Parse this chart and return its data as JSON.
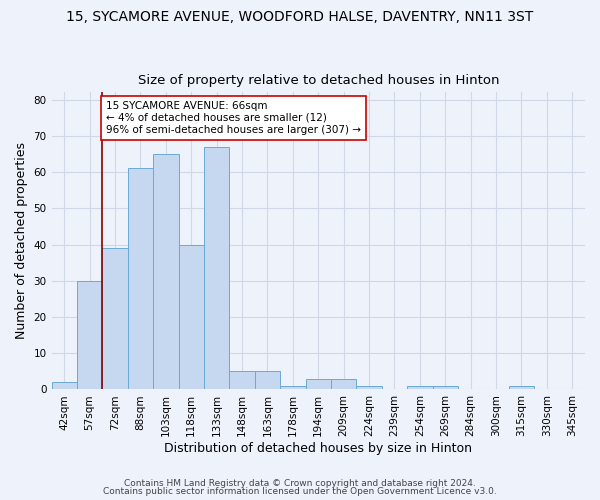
{
  "title": "15, SYCAMORE AVENUE, WOODFORD HALSE, DAVENTRY, NN11 3ST",
  "subtitle": "Size of property relative to detached houses in Hinton",
  "xlabel": "Distribution of detached houses by size in Hinton",
  "ylabel": "Number of detached properties",
  "footer1": "Contains HM Land Registry data © Crown copyright and database right 2024.",
  "footer2": "Contains public sector information licensed under the Open Government Licence v3.0.",
  "categories": [
    "42sqm",
    "57sqm",
    "72sqm",
    "88sqm",
    "103sqm",
    "118sqm",
    "133sqm",
    "148sqm",
    "163sqm",
    "178sqm",
    "194sqm",
    "209sqm",
    "224sqm",
    "239sqm",
    "254sqm",
    "269sqm",
    "284sqm",
    "300sqm",
    "315sqm",
    "330sqm",
    "345sqm"
  ],
  "values": [
    2,
    30,
    39,
    61,
    65,
    40,
    67,
    5,
    5,
    1,
    3,
    3,
    1,
    0,
    1,
    1,
    0,
    0,
    1,
    0,
    0
  ],
  "bar_color": "#c5d8f0",
  "bar_edge_color": "#6aaad4",
  "property_line_x": 1.5,
  "property_line_color": "#8b0000",
  "annotation_text": "15 SYCAMORE AVENUE: 66sqm\n← 4% of detached houses are smaller (12)\n96% of semi-detached houses are larger (307) →",
  "annotation_box_color": "#ffffff",
  "annotation_box_edge": "#cc0000",
  "ylim": [
    0,
    82
  ],
  "yticks": [
    0,
    10,
    20,
    30,
    40,
    50,
    60,
    70,
    80
  ],
  "bg_color": "#eef2fa",
  "plot_bg_color": "#eef2fa",
  "grid_color": "#d0d8e8",
  "title_fontsize": 10,
  "subtitle_fontsize": 9.5,
  "axis_label_fontsize": 9,
  "tick_fontsize": 7.5,
  "footer_fontsize": 6.5
}
